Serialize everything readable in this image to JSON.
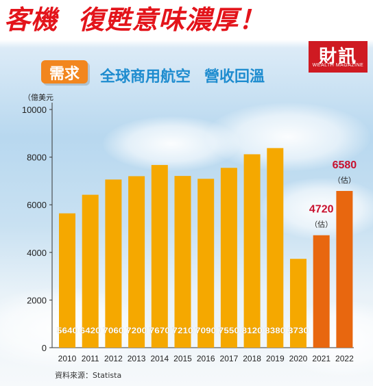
{
  "headline": {
    "part1": "客機",
    "part2": "復甦意味濃厚！"
  },
  "logo": {
    "cn": "財訊",
    "en": "WEALTH MAGAZINE"
  },
  "tag": {
    "label": "需求"
  },
  "subtitle": {
    "part1": "全球商用航空",
    "part2": "營收回溫"
  },
  "unit_label": "（億美元",
  "source": "資料來源：Statista",
  "colors": {
    "bar_actual": "#f5a800",
    "bar_estimate": "#e8670f",
    "estimate_label": "#c8102e",
    "headline": "#e3141b",
    "subtitle": "#1e8ccf"
  },
  "chart_data": {
    "type": "bar",
    "categories": [
      "2010",
      "2011",
      "2012",
      "2013",
      "2014",
      "2015",
      "2016",
      "2017",
      "2018",
      "2019",
      "2020",
      "2021",
      "2022"
    ],
    "values": [
      5640,
      6420,
      7060,
      7200,
      7670,
      7210,
      7090,
      7550,
      8120,
      8380,
      3730,
      4720,
      6580
    ],
    "estimated": [
      false,
      false,
      false,
      false,
      false,
      false,
      false,
      false,
      false,
      false,
      false,
      true,
      true
    ],
    "estimate_note": "（估）",
    "ylim": [
      0,
      10000
    ],
    "yticks": [
      "0",
      "2000",
      "4000",
      "6000",
      "8000",
      "10000"
    ],
    "grid": false,
    "title": "全球商用航空 營收回溫",
    "ylabel": "（億美元"
  }
}
